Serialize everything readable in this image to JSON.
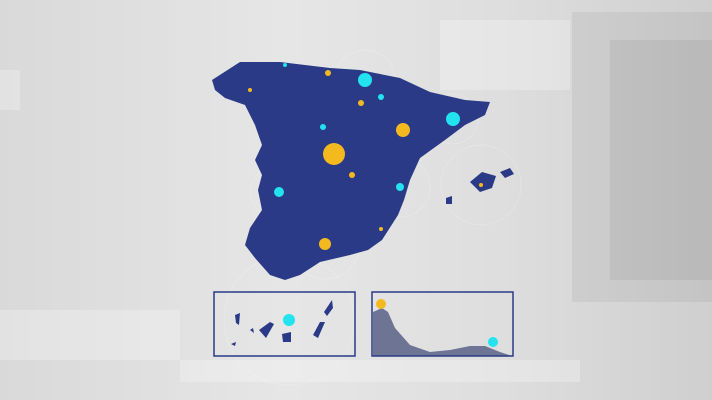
{
  "colors": {
    "land": "#2b3a87",
    "marker_cyan": "#22e3ef",
    "marker_yellow": "#f5b920",
    "inset_border": "#2b3a87",
    "inset_profile": "#6d7494",
    "background": "#dcdcdc"
  },
  "map": {
    "region": "Spain",
    "insets": [
      "canary-islands",
      "coastal-profile"
    ]
  }
}
